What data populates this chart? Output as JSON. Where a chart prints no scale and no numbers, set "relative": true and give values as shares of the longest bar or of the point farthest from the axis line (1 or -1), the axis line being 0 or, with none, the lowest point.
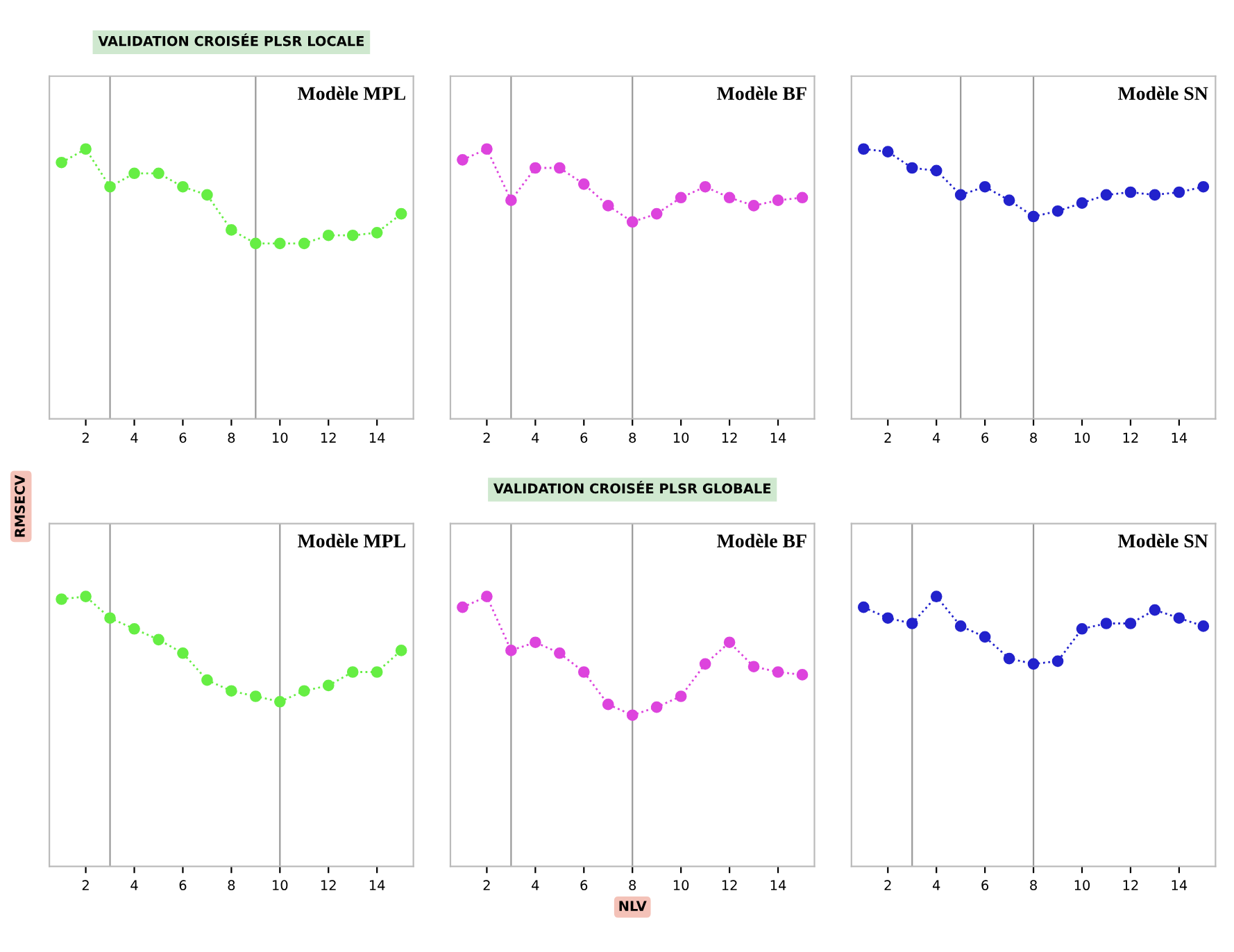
{
  "chart_data": [
    {
      "type": "line",
      "title": "Modèle MPL",
      "annotations": [
        "VALIDATION CROISÉE PLSR LOCALE"
      ],
      "relative": true,
      "x": [
        1,
        2,
        3,
        4,
        5,
        6,
        7,
        8,
        9,
        10,
        11,
        12,
        13,
        14,
        15
      ],
      "xlim": [
        0.5,
        15.5
      ],
      "xticks": [
        2,
        4,
        6,
        8,
        10,
        12,
        14
      ],
      "tick_labels": "x",
      "marker": "circle",
      "line_style": "dotted",
      "grid": false,
      "series": [
        {
          "color": "#66ee44",
          "values": [
            0.95,
            1,
            0.86,
            0.91,
            0.91,
            0.86,
            0.83,
            0.7,
            0.65,
            0.65,
            0.65,
            0.68,
            0.68,
            0.69,
            0.76
          ]
        }
      ],
      "ref_lines": [
        {
          "axis": "x",
          "value": 3,
          "color": "#999999"
        },
        {
          "axis": "x",
          "value": 9,
          "color": "#999999"
        }
      ]
    },
    {
      "type": "line",
      "title": "Modèle BF",
      "relative": true,
      "x": [
        1,
        2,
        3,
        4,
        5,
        6,
        7,
        8,
        9,
        10,
        11,
        12,
        13,
        14,
        15
      ],
      "xlim": [
        0.5,
        15.5
      ],
      "xticks": [
        2,
        4,
        6,
        8,
        10,
        12,
        14
      ],
      "tick_labels": "x",
      "marker": "circle",
      "line_style": "dotted",
      "grid": false,
      "series": [
        {
          "color": "#dd44dd",
          "values": [
            0.96,
            1,
            0.81,
            0.93,
            0.93,
            0.87,
            0.79,
            0.73,
            0.76,
            0.82,
            0.86,
            0.82,
            0.79,
            0.81,
            0.82
          ]
        }
      ],
      "ref_lines": [
        {
          "axis": "x",
          "value": 3,
          "color": "#999999"
        },
        {
          "axis": "x",
          "value": 8,
          "color": "#999999"
        }
      ]
    },
    {
      "type": "line",
      "title": "Modèle SN",
      "relative": true,
      "x": [
        1,
        2,
        3,
        4,
        5,
        6,
        7,
        8,
        9,
        10,
        11,
        12,
        13,
        14,
        15
      ],
      "xlim": [
        0.5,
        15.5
      ],
      "xticks": [
        2,
        4,
        6,
        8,
        10,
        12,
        14
      ],
      "tick_labels": "x",
      "marker": "circle",
      "line_style": "dotted",
      "grid": false,
      "series": [
        {
          "color": "#2222cc",
          "values": [
            1,
            0.99,
            0.93,
            0.92,
            0.83,
            0.86,
            0.81,
            0.75,
            0.77,
            0.8,
            0.83,
            0.84,
            0.83,
            0.84,
            0.86
          ]
        }
      ],
      "ref_lines": [
        {
          "axis": "x",
          "value": 5,
          "color": "#999999"
        },
        {
          "axis": "x",
          "value": 8,
          "color": "#999999"
        }
      ]
    },
    {
      "type": "line",
      "title": "Modèle MPL",
      "ylabel": "RMSECV",
      "relative": true,
      "x": [
        1,
        2,
        3,
        4,
        5,
        6,
        7,
        8,
        9,
        10,
        11,
        12,
        13,
        14,
        15
      ],
      "xlim": [
        0.5,
        15.5
      ],
      "xticks": [
        2,
        4,
        6,
        8,
        10,
        12,
        14
      ],
      "tick_labels": "x",
      "marker": "circle",
      "line_style": "dotted",
      "grid": false,
      "series": [
        {
          "color": "#66ee44",
          "values": [
            0.99,
            1,
            0.92,
            0.88,
            0.84,
            0.79,
            0.69,
            0.65,
            0.63,
            0.61,
            0.65,
            0.67,
            0.72,
            0.72,
            0.8
          ]
        }
      ],
      "ref_lines": [
        {
          "axis": "x",
          "value": 3,
          "color": "#999999"
        },
        {
          "axis": "x",
          "value": 10,
          "color": "#999999"
        }
      ]
    },
    {
      "type": "line",
      "title": "Modèle BF",
      "xlabel": "NLV",
      "annotations": [
        "VALIDATION CROISÉE PLSR GLOBALE"
      ],
      "relative": true,
      "x": [
        1,
        2,
        3,
        4,
        5,
        6,
        7,
        8,
        9,
        10,
        11,
        12,
        13,
        14,
        15
      ],
      "xlim": [
        0.5,
        15.5
      ],
      "xticks": [
        2,
        4,
        6,
        8,
        10,
        12,
        14
      ],
      "tick_labels": "x",
      "marker": "circle",
      "line_style": "dotted",
      "grid": false,
      "series": [
        {
          "color": "#dd44dd",
          "values": [
            0.96,
            1,
            0.8,
            0.83,
            0.79,
            0.72,
            0.6,
            0.56,
            0.59,
            0.63,
            0.75,
            0.83,
            0.74,
            0.72,
            0.71
          ]
        }
      ],
      "ref_lines": [
        {
          "axis": "x",
          "value": 3,
          "color": "#999999"
        },
        {
          "axis": "x",
          "value": 8,
          "color": "#999999"
        }
      ]
    },
    {
      "type": "line",
      "title": "Modèle SN",
      "relative": true,
      "x": [
        1,
        2,
        3,
        4,
        5,
        6,
        7,
        8,
        9,
        10,
        11,
        12,
        13,
        14,
        15
      ],
      "xlim": [
        0.5,
        15.5
      ],
      "xticks": [
        2,
        4,
        6,
        8,
        10,
        12,
        14
      ],
      "tick_labels": "x",
      "marker": "circle",
      "line_style": "dotted",
      "grid": false,
      "series": [
        {
          "color": "#2222cc",
          "values": [
            0.96,
            0.92,
            0.9,
            1,
            0.89,
            0.85,
            0.77,
            0.75,
            0.76,
            0.88,
            0.9,
            0.9,
            0.95,
            0.92,
            0.89
          ]
        }
      ],
      "ref_lines": [
        {
          "axis": "x",
          "value": 3,
          "color": "#999999"
        },
        {
          "axis": "x",
          "value": 8,
          "color": "#999999"
        }
      ]
    }
  ]
}
